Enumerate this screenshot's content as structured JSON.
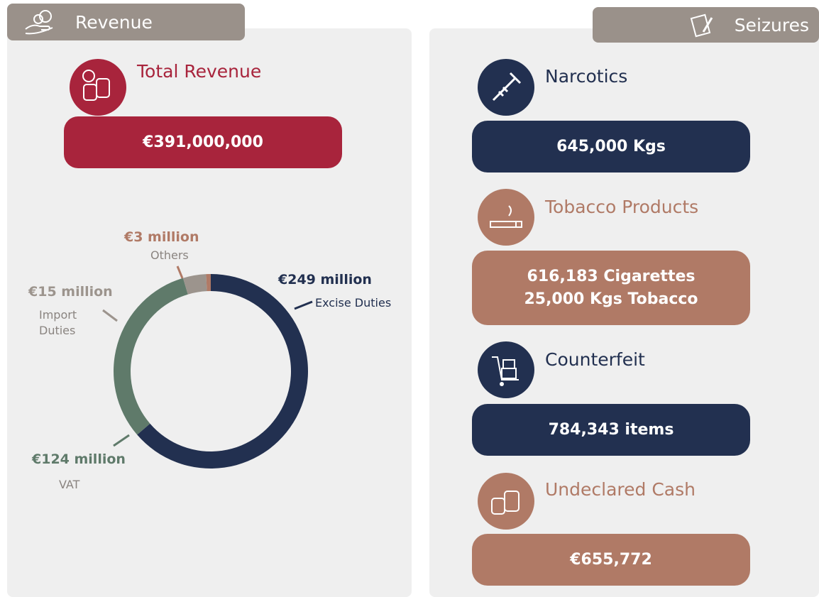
{
  "revenue": {
    "header": "Revenue",
    "total_title": "Total Revenue",
    "total_value": "€391,000,000",
    "color": "#a8243c"
  },
  "chart_data": {
    "type": "donut",
    "categories": [
      "Excise Duties",
      "VAT",
      "Import Duties",
      "Others"
    ],
    "values": [
      249,
      124,
      15,
      3
    ],
    "value_labels": [
      "€249 million",
      "€124 million",
      "€15 million",
      "€3 million"
    ],
    "colors": [
      "#223050",
      "#5f7a6a",
      "#9c948d",
      "#b07a66"
    ]
  },
  "seizures": {
    "header": "Seizures",
    "items": [
      {
        "title": "Narcotics",
        "lines": [
          "645,000 Kgs"
        ],
        "color": "#223050"
      },
      {
        "title": "Tobacco Products",
        "lines": [
          "616,183 Cigarettes",
          "25,000 Kgs Tobacco"
        ],
        "color": "#b07a66"
      },
      {
        "title": "Counterfeit",
        "lines": [
          "784,343 items"
        ],
        "color": "#223050"
      },
      {
        "title": "Undeclared Cash",
        "lines": [
          "€655,772"
        ],
        "color": "#b07a66"
      }
    ]
  }
}
